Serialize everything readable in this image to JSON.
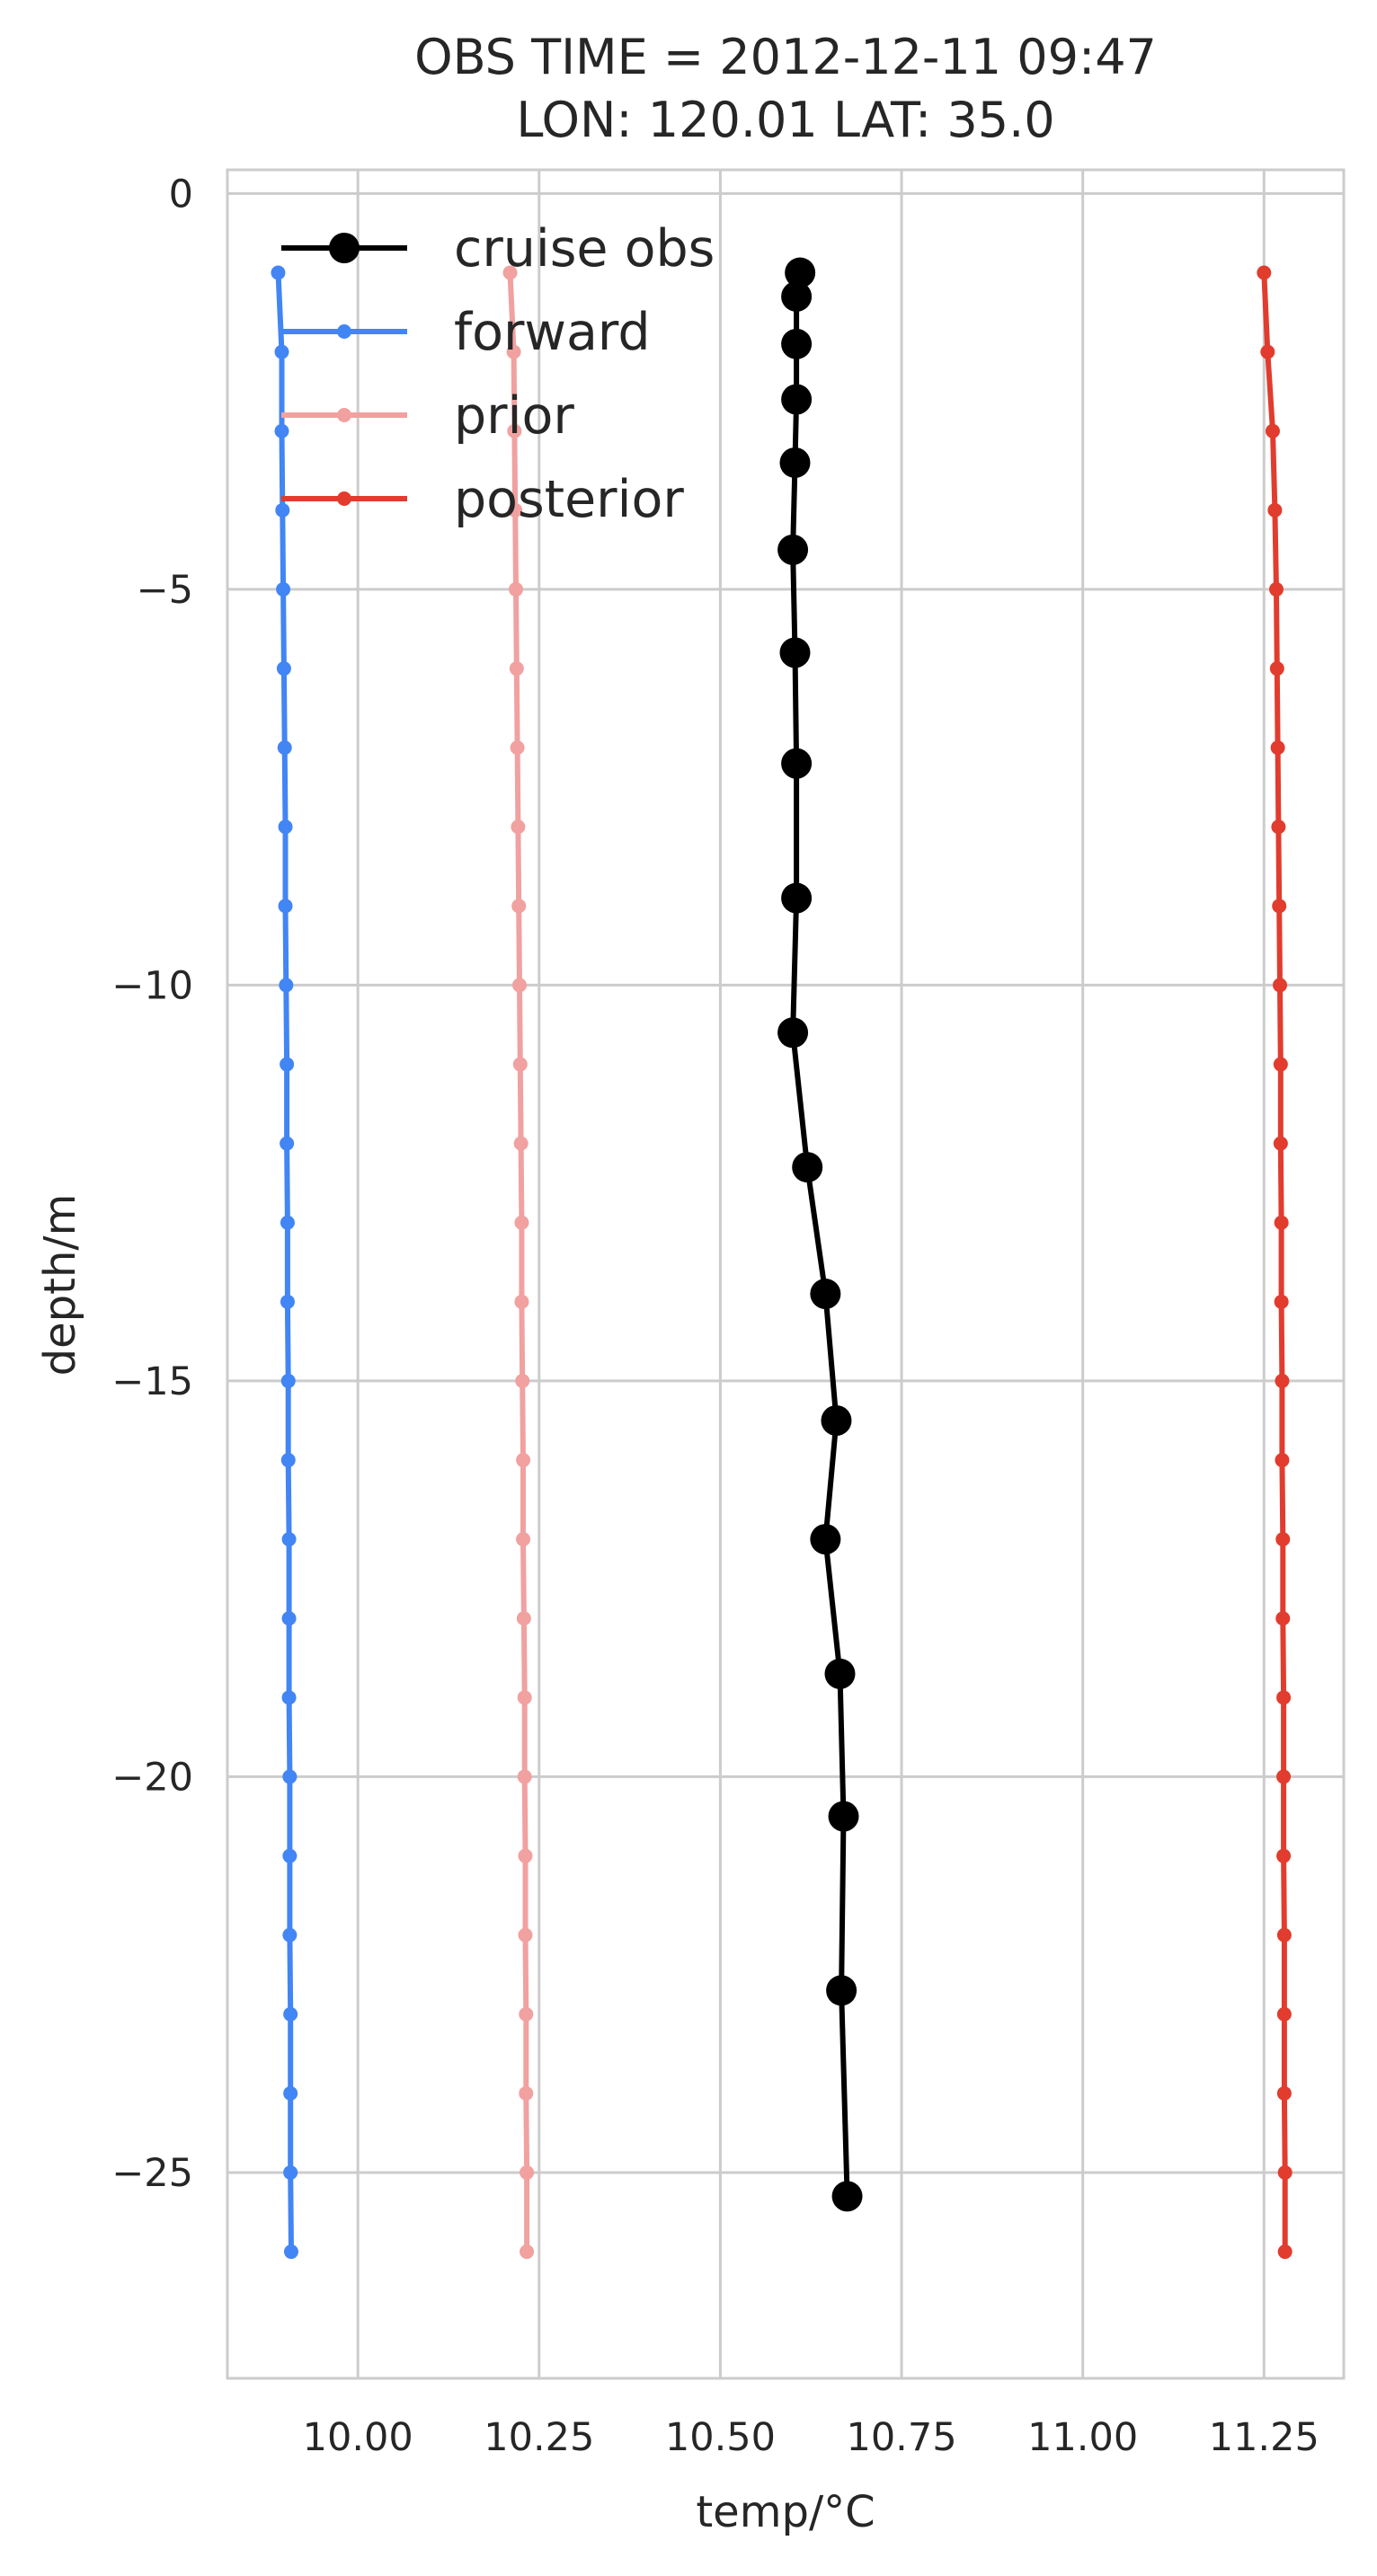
{
  "chart_data": {
    "type": "line",
    "title": "OBS TIME = 2012-12-11 09:47",
    "subtitle": "LON: 120.01 LAT: 35.0",
    "xlabel": "temp/°C",
    "ylabel": "depth/m",
    "xlim": [
      9.82,
      11.36
    ],
    "ylim": [
      -27.6,
      0.3
    ],
    "xticks": [
      10.0,
      10.25,
      10.5,
      10.75,
      11.0,
      11.25
    ],
    "xtick_labels": [
      "10.00",
      "10.25",
      "10.50",
      "10.75",
      "11.00",
      "11.25"
    ],
    "yticks": [
      0,
      -5,
      -10,
      -15,
      -20,
      -25
    ],
    "ytick_labels": [
      "0",
      "−5",
      "−10",
      "−15",
      "−20",
      "−25"
    ],
    "grid": true,
    "legend_position": "top-left",
    "series": [
      {
        "name": "cruise obs",
        "color": "#000000",
        "marker": "large-circle",
        "x": [
          10.61,
          10.605,
          10.605,
          10.605,
          10.603,
          10.6,
          10.603,
          10.605,
          10.605,
          10.6,
          10.62,
          10.645,
          10.66,
          10.645,
          10.665,
          10.67,
          10.667,
          10.675
        ],
        "y": [
          -1.0,
          -1.3,
          -1.9,
          -2.6,
          -3.4,
          -4.5,
          -5.8,
          -7.2,
          -8.9,
          -10.6,
          -12.3,
          -13.9,
          -15.5,
          -17.0,
          -18.7,
          -20.5,
          -22.7,
          -25.3
        ]
      },
      {
        "name": "forward",
        "color": "#4285f4",
        "marker": "small-dot",
        "x": [
          9.89,
          9.895,
          9.895,
          9.896,
          9.897,
          9.898,
          9.899,
          9.9,
          9.9,
          9.901,
          9.902,
          9.902,
          9.903,
          9.903,
          9.904,
          9.904,
          9.905,
          9.905,
          9.905,
          9.906,
          9.906,
          9.906,
          9.907,
          9.907,
          9.907,
          9.908
        ],
        "y": [
          -1,
          -2,
          -3,
          -4,
          -5,
          -6,
          -7,
          -8,
          -9,
          -10,
          -11,
          -12,
          -13,
          -14,
          -15,
          -16,
          -17,
          -18,
          -19,
          -20,
          -21,
          -22,
          -23,
          -24,
          -25,
          -26
        ]
      },
      {
        "name": "prior",
        "color": "#f0a1a0",
        "marker": "small-dot",
        "x": [
          10.21,
          10.215,
          10.216,
          10.217,
          10.218,
          10.219,
          10.22,
          10.221,
          10.222,
          10.223,
          10.224,
          10.225,
          10.226,
          10.226,
          10.227,
          10.228,
          10.228,
          10.229,
          10.23,
          10.23,
          10.231,
          10.231,
          10.232,
          10.232,
          10.233,
          10.233
        ],
        "y": [
          -1,
          -2,
          -3,
          -4,
          -5,
          -6,
          -7,
          -8,
          -9,
          -10,
          -11,
          -12,
          -13,
          -14,
          -15,
          -16,
          -17,
          -18,
          -19,
          -20,
          -21,
          -22,
          -23,
          -24,
          -25,
          -26
        ]
      },
      {
        "name": "posterior",
        "color": "#e13c2e",
        "marker": "small-dot",
        "x": [
          11.25,
          11.255,
          11.262,
          11.265,
          11.267,
          11.268,
          11.269,
          11.27,
          11.271,
          11.272,
          11.273,
          11.273,
          11.274,
          11.274,
          11.275,
          11.275,
          11.276,
          11.276,
          11.277,
          11.277,
          11.277,
          11.278,
          11.278,
          11.278,
          11.279,
          11.279
        ],
        "y": [
          -1,
          -2,
          -3,
          -4,
          -5,
          -6,
          -7,
          -8,
          -9,
          -10,
          -11,
          -12,
          -13,
          -14,
          -15,
          -16,
          -17,
          -18,
          -19,
          -20,
          -21,
          -22,
          -23,
          -24,
          -25,
          -26
        ]
      }
    ]
  }
}
